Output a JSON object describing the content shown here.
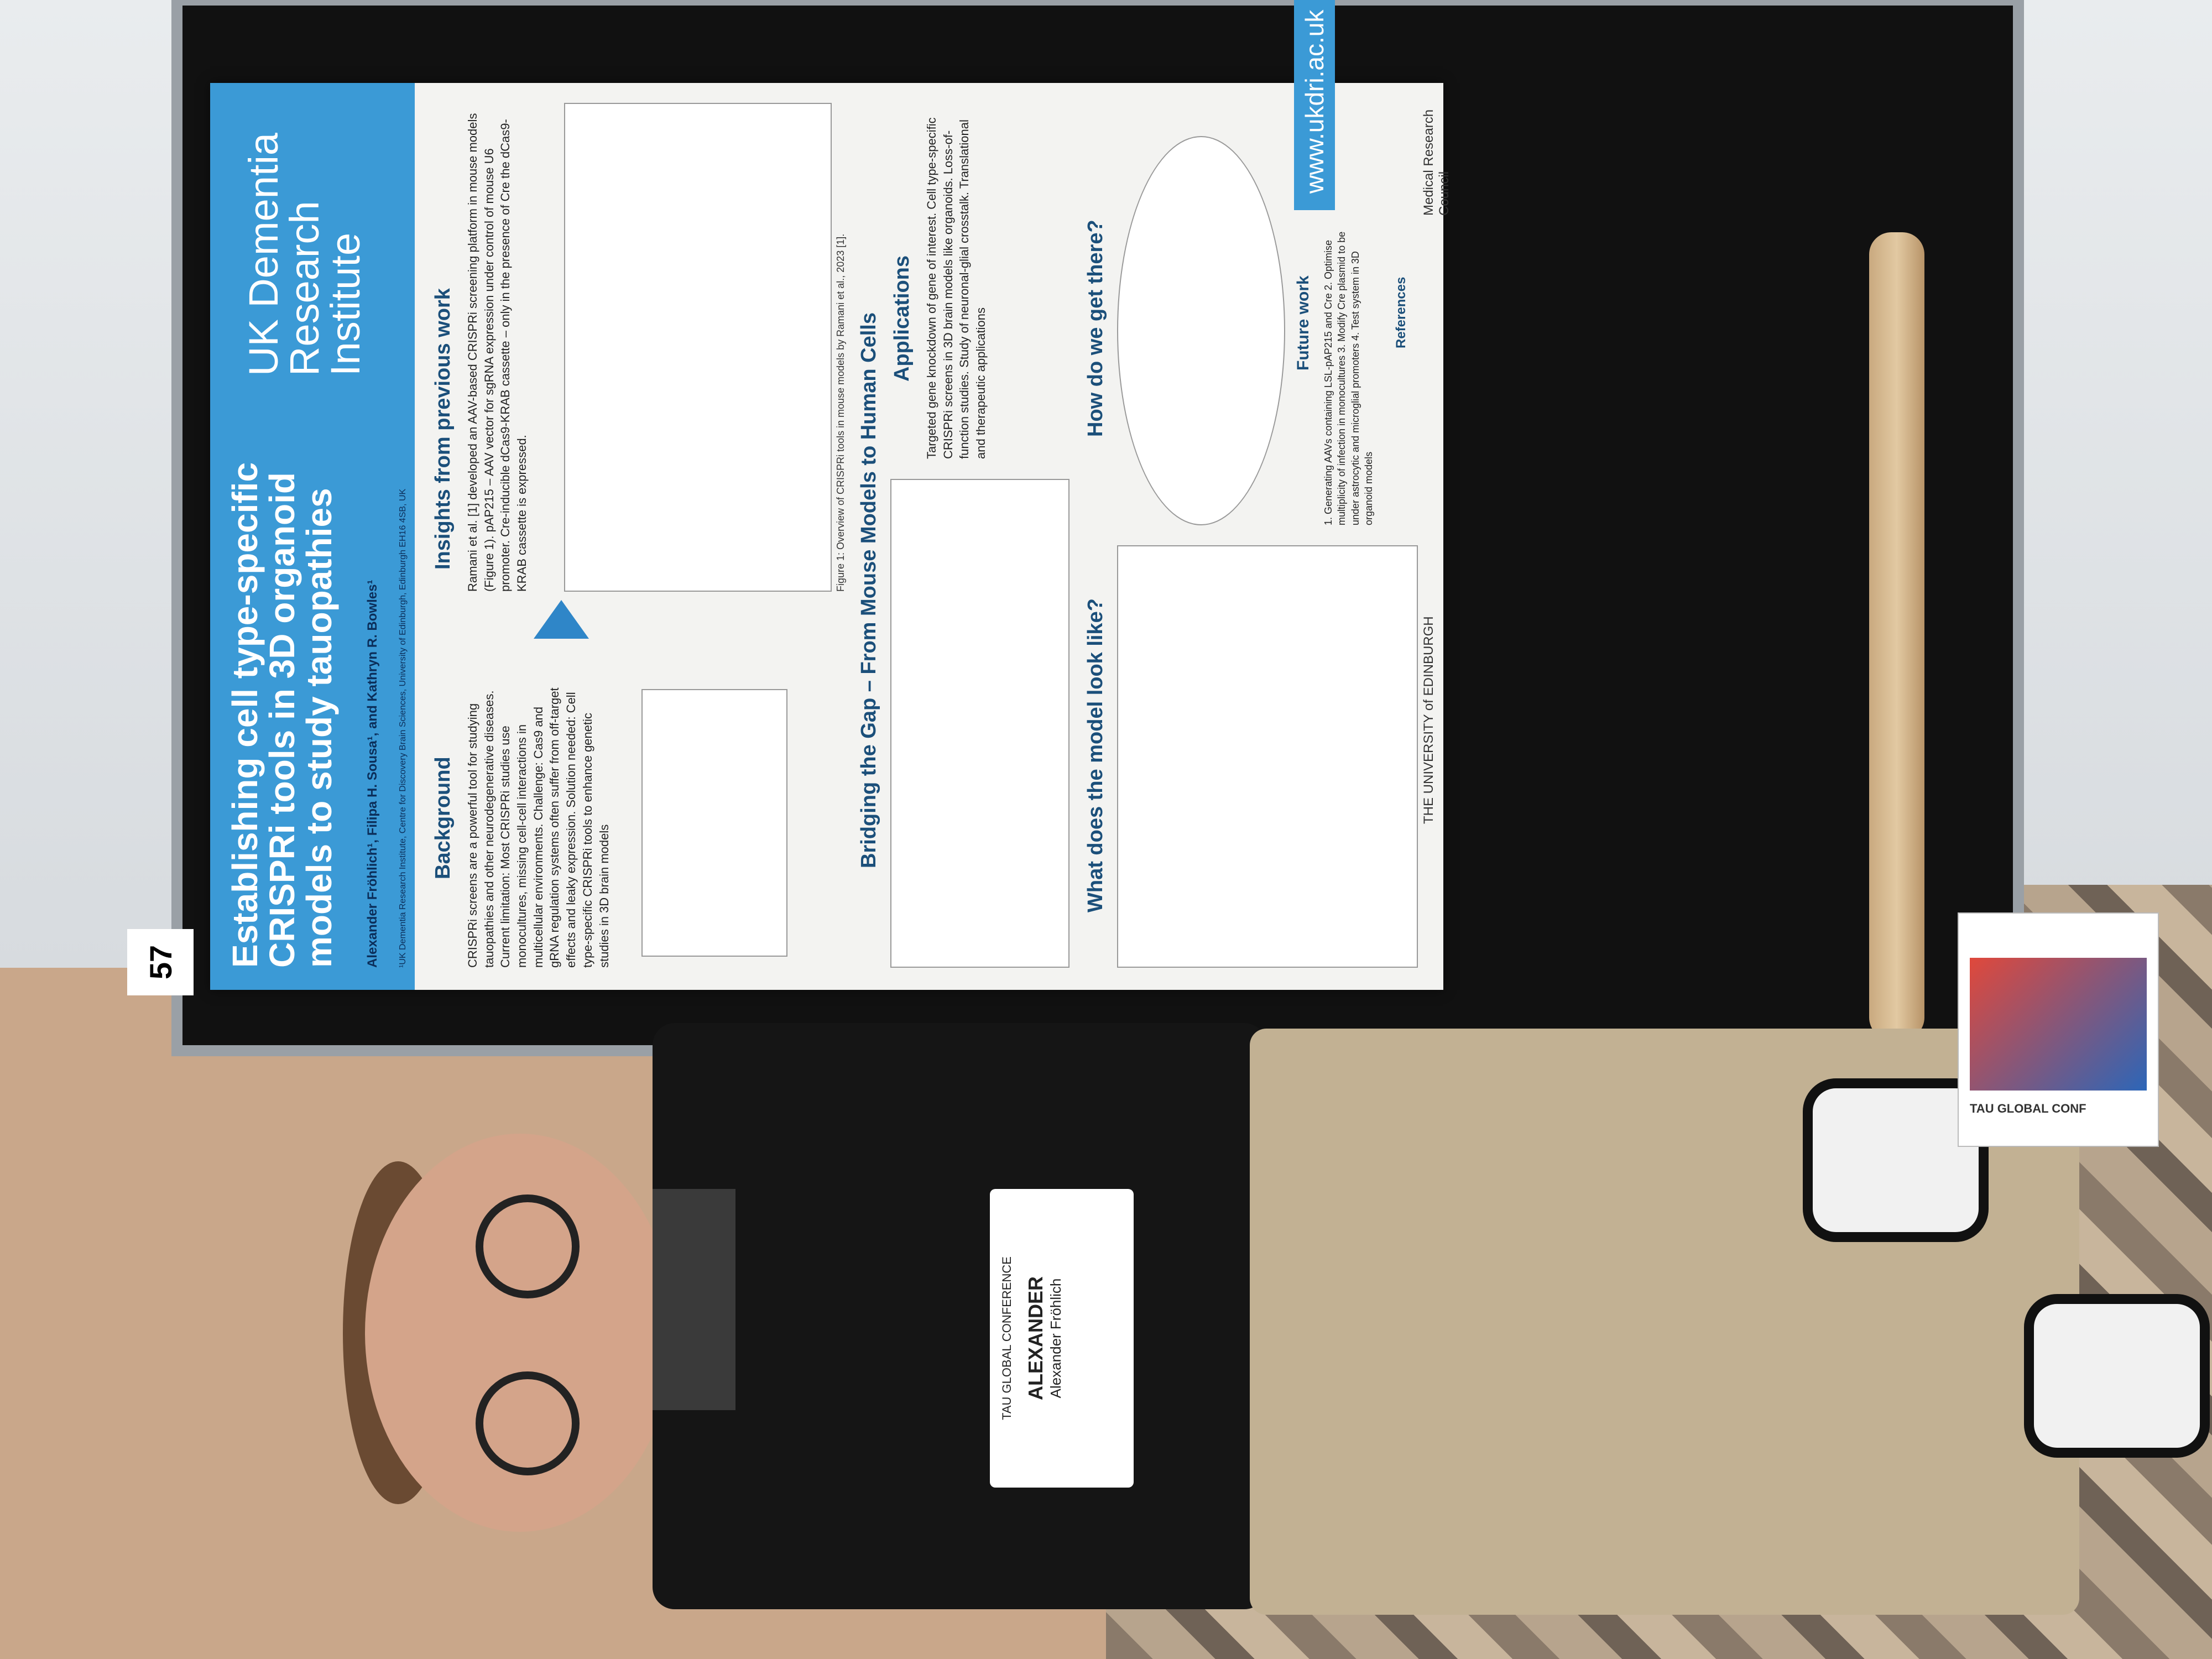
{
  "poster": {
    "number": "57",
    "title": "Establishing cell type-specific CRISPRi tools in 3D organoid models to study tauopathies",
    "authors": "Alexander Fröhlich¹, Filipa H. Sousa¹, and Kathryn R. Bowles¹",
    "affiliation": "¹UK Dementia Research Institute, Centre for Discovery Brain Sciences, University of Edinburgh, Edinburgh EH16 4SB, UK",
    "institute": "UK Dementia Research Institute",
    "background_title": "Background",
    "background_body": "CRISPRi screens are a powerful tool for studying tauopathies and other neurodegenerative diseases. Current limitation: Most CRISPRi studies use monocultures, missing cell-cell interactions in multicellular environments. Challenge: Cas9 and gRNA regulation systems often suffer from off-target effects and leaky expression. Solution needed: Cell type-specific CRISPRi tools to enhance genetic studies in 3D brain models",
    "insights_title": "Insights from previous work",
    "insights_body": "Ramani et al. [1] developed an AAV-based CRISPRi screening platform in mouse models (Figure 1). pAP215 – AAV vector for sgRNA expression under control of mouse U6 promoter. Cre-inducible dCas9-KRAB cassette – only in the presence of Cre the dCas9-KRAB cassette is expressed.",
    "figure1_caption": "Figure 1: Overview of CRISPRi tools in mouse models by Ramani et al., 2023 [1].",
    "bridging_title": "Bridging the Gap – From Mouse Models to Human Cells",
    "applications_title": "Applications",
    "applications_body": "Targeted gene knockdown of gene of interest. Cell type-specific CRISPRi screens in 3D brain models like organoids. Loss-of-function studies. Study of neuronal-glial crosstalk. Translational and therapeutic applications",
    "model_title": "What does the model look like?",
    "get_there_title": "How do we get there?",
    "future_title": "Future work",
    "future_body": "1. Generating AAVs containing LSL-pAP215 and Cre 2. Optimise multiplicity of infection in monocultures 3. Modify Cre plasmid to be under astrocytic and microglial promoters 4. Test system in 3D organoid models",
    "references_title": "References",
    "url": "www.ukdri.ac.uk",
    "edinburgh": "THE UNIVERSITY of EDINBURGH",
    "mrc": "Medical Research Council"
  },
  "badge": {
    "conference": "TAU GLOBAL CONFERENCE",
    "first_name": "ALEXANDER",
    "full_name": "Alexander Fröhlich"
  },
  "brochure": {
    "text": "TAU GLOBAL CONF"
  },
  "colors": {
    "poster_blue": "#3b9ad6",
    "board": "#111111",
    "shirt": "#151515",
    "pants": "#c2b193"
  }
}
